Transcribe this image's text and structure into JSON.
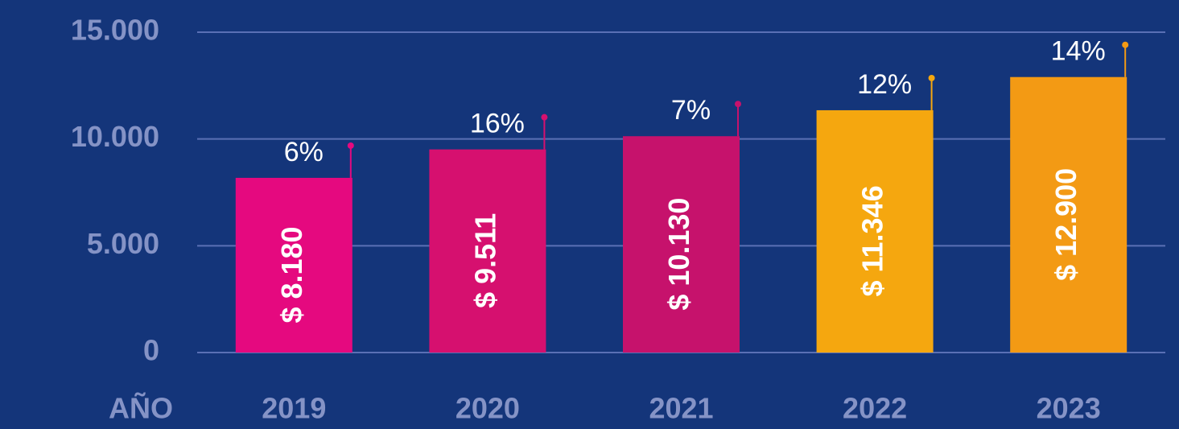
{
  "chart_data": {
    "type": "bar",
    "categories": [
      "2019",
      "2020",
      "2021",
      "2022",
      "2023"
    ],
    "values": [
      8180,
      9511,
      10130,
      11346,
      12900
    ],
    "value_labels": [
      "$ 8.180",
      "$ 9.511",
      "$ 10.130",
      "$ 11.346",
      "$ 12.900"
    ],
    "annotations": [
      "6%",
      "16%",
      "7%",
      "12%",
      "14%"
    ],
    "colors": [
      "#e5097f",
      "#d6106f",
      "#c6126c",
      "#f5a70f",
      "#f39a14"
    ],
    "x_label": "AÑO",
    "ylim": [
      0,
      15000
    ],
    "yticks": [
      0,
      {
        "value": 5000,
        "label": "5.000"
      },
      {
        "value": 10000,
        "label": "10.000"
      },
      {
        "value": 15000,
        "label": "15.000"
      }
    ],
    "grid": true
  }
}
